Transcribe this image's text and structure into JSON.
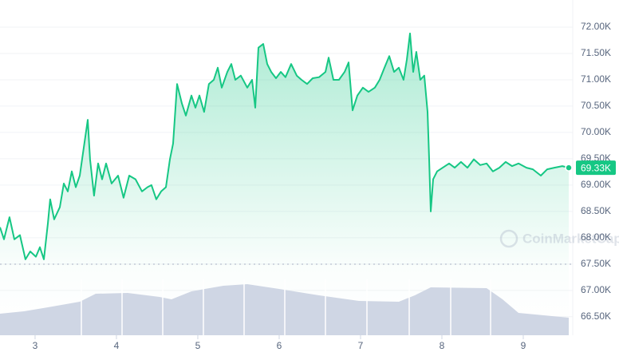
{
  "chart_data": {
    "type": "area-line",
    "color": "#16c784",
    "x": [
      2.569,
      2.618,
      2.686,
      2.745,
      2.814,
      2.882,
      2.941,
      3.01,
      3.059,
      3.108,
      3.157,
      3.186,
      3.235,
      3.304,
      3.353,
      3.402,
      3.451,
      3.5,
      3.549,
      3.598,
      3.647,
      3.676,
      3.725,
      3.775,
      3.824,
      3.873,
      3.941,
      4.02,
      4.088,
      4.157,
      4.235,
      4.314,
      4.382,
      4.431,
      4.49,
      4.549,
      4.608,
      4.657,
      4.696,
      4.745,
      4.804,
      4.853,
      4.922,
      4.971,
      5.02,
      5.078,
      5.137,
      5.196,
      5.245,
      5.294,
      5.363,
      5.412,
      5.461,
      5.529,
      5.608,
      5.667,
      5.706,
      5.745,
      5.804,
      5.853,
      5.902,
      5.961,
      6.02,
      6.078,
      6.147,
      6.216,
      6.275,
      6.343,
      6.412,
      6.49,
      6.569,
      6.608,
      6.667,
      6.735,
      6.804,
      6.853,
      6.902,
      6.961,
      7.029,
      7.098,
      7.176,
      7.235,
      7.294,
      7.353,
      7.412,
      7.471,
      7.529,
      7.569,
      7.608,
      7.647,
      7.686,
      7.735,
      7.784,
      7.824,
      7.843,
      7.863,
      7.892,
      7.941,
      8.01,
      8.088,
      8.157,
      8.235,
      8.314,
      8.392,
      8.471,
      8.549,
      8.627,
      8.706,
      8.784,
      8.863,
      8.941,
      9.039,
      9.118,
      9.216,
      9.294,
      9.382,
      9.48,
      9.559
    ],
    "values": [
      68200,
      67970,
      68390,
      67970,
      68050,
      67590,
      67740,
      67640,
      67820,
      67590,
      68270,
      68730,
      68350,
      68580,
      69030,
      68880,
      69260,
      68960,
      69180,
      69710,
      70240,
      69490,
      68800,
      69410,
      69110,
      69410,
      69030,
      69180,
      68760,
      69180,
      69110,
      68880,
      68960,
      69000,
      68730,
      68880,
      68960,
      69490,
      69790,
      70920,
      70550,
      70320,
      70700,
      70470,
      70700,
      70390,
      70920,
      71000,
      71230,
      70850,
      71150,
      71300,
      71000,
      71080,
      70850,
      71000,
      70470,
      71610,
      71680,
      71300,
      71150,
      71030,
      71150,
      71050,
      71300,
      71080,
      71000,
      70920,
      71030,
      71050,
      71150,
      71420,
      71000,
      71000,
      71150,
      71330,
      70420,
      70700,
      70850,
      70770,
      70850,
      71000,
      71230,
      71450,
      71150,
      71230,
      71000,
      71380,
      71880,
      71150,
      71530,
      71000,
      71080,
      70390,
      69490,
      68500,
      69110,
      69260,
      69330,
      69410,
      69330,
      69440,
      69330,
      69490,
      69380,
      69410,
      69260,
      69330,
      69440,
      69360,
      69410,
      69330,
      69300,
      69180,
      69300,
      69330,
      69360,
      69330
    ],
    "xlim": [
      2.569,
      9.608
    ],
    "xticks": [
      3,
      4,
      5,
      6,
      7,
      8,
      9
    ],
    "ylim": [
      66300,
      72500
    ],
    "yticks": [
      {
        "value": 66500,
        "label": "66.50K"
      },
      {
        "value": 67000,
        "label": "67.00K"
      },
      {
        "value": 67500,
        "label": "67.50K"
      },
      {
        "value": 68000,
        "label": "68.00K"
      },
      {
        "value": 68500,
        "label": "68.50K"
      },
      {
        "value": 69000,
        "label": "69.00K"
      },
      {
        "value": 69500,
        "label": "69.50K"
      },
      {
        "value": 70000,
        "label": "70.00K"
      },
      {
        "value": 70500,
        "label": "70.50K"
      },
      {
        "value": 71000,
        "label": "71.00K"
      },
      {
        "value": 71500,
        "label": "71.50K"
      },
      {
        "value": 72000,
        "label": "72.00K"
      }
    ],
    "grid": true,
    "current_price_label": "69.33K",
    "watermark": "CoinMarketCap"
  }
}
